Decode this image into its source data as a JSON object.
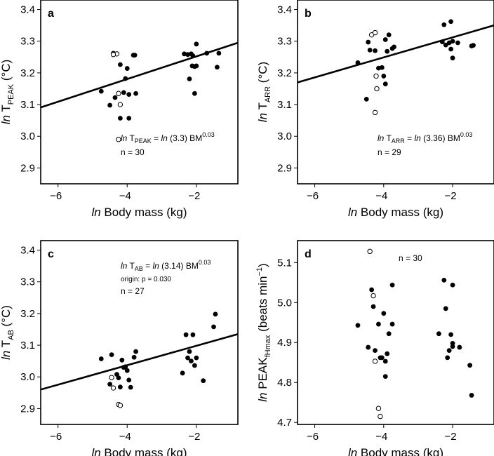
{
  "figure": {
    "label": "Four scatter panels with linear fits",
    "xlabel_prefix": "ln",
    "xlabel_text": "Body mass (kg)"
  },
  "chart_data": [
    {
      "panel_label": "a",
      "type": "scatter",
      "xlabel": "ln Body mass (kg)",
      "ylabel": {
        "prefix": "ln",
        "main": "T",
        "sub": "PEAK",
        "suffix": "(°C)"
      },
      "xlim": [
        -6.5,
        -0.8
      ],
      "ylim": [
        2.85,
        3.43
      ],
      "xticks": [
        -6,
        -4,
        -2
      ],
      "yticks": [
        "2.9",
        "3.0",
        "3.1",
        "3.2",
        "3.3",
        "3.4"
      ],
      "fit": {
        "x": [
          -6.5,
          -0.8
        ],
        "y": [
          3.091,
          3.295
        ]
      },
      "annotation": [
        {
          "pre": "ln",
          "main": "T",
          "sub": "PEAK",
          "post": " = ",
          "pre2": "ln",
          "rest": " (3.3) BM",
          "sup": "0.03"
        },
        {
          "text": "n = 30"
        }
      ],
      "points_filled": [
        [
          -4.75,
          3.142
        ],
        [
          -4.5,
          3.098
        ],
        [
          -4.4,
          3.262
        ],
        [
          -4.35,
          3.122
        ],
        [
          -4.2,
          3.226
        ],
        [
          -4.2,
          3.057
        ],
        [
          -4.1,
          3.138
        ],
        [
          -4.05,
          3.182
        ],
        [
          -4.0,
          3.214
        ],
        [
          -3.95,
          3.132
        ],
        [
          -3.95,
          3.057
        ],
        [
          -3.82,
          3.256
        ],
        [
          -3.78,
          3.256
        ],
        [
          -3.75,
          3.135
        ],
        [
          -2.35,
          3.26
        ],
        [
          -2.25,
          3.258
        ],
        [
          -2.2,
          3.181
        ],
        [
          -2.15,
          3.26
        ],
        [
          -2.12,
          3.222
        ],
        [
          -2.1,
          3.254
        ],
        [
          -2.05,
          3.22
        ],
        [
          -2.05,
          3.135
        ],
        [
          -2.0,
          3.291
        ],
        [
          -2.0,
          3.222
        ],
        [
          -1.7,
          3.262
        ],
        [
          -1.4,
          3.218
        ],
        [
          -1.35,
          3.262
        ]
      ],
      "points_open": [
        [
          -4.3,
          3.26
        ],
        [
          -4.4,
          3.258
        ],
        [
          -4.25,
          3.135
        ],
        [
          -4.2,
          3.1
        ],
        [
          -4.25,
          2.99
        ]
      ]
    },
    {
      "panel_label": "b",
      "type": "scatter",
      "xlabel": "ln Body mass (kg)",
      "ylabel": {
        "prefix": "ln",
        "main": "T",
        "sub": "ARR",
        "suffix": "(°C)"
      },
      "xlim": [
        -6.5,
        -0.8
      ],
      "ylim": [
        2.85,
        3.43
      ],
      "xticks": [
        -6,
        -4,
        -2
      ],
      "yticks": [
        "2.9",
        "3.0",
        "3.1",
        "3.2",
        "3.3",
        "3.4"
      ],
      "fit": {
        "x": [
          -6.5,
          -0.8
        ],
        "y": [
          3.17,
          3.35
        ]
      },
      "annotation": [
        {
          "pre": "ln",
          "main": "T",
          "sub": "ARR",
          "post": " = ",
          "pre2": "ln",
          "rest": " (3.36) BM",
          "sup": "0.03"
        },
        {
          "text": "n = 29"
        }
      ],
      "points_filled": [
        [
          -4.75,
          3.232
        ],
        [
          -4.5,
          3.117
        ],
        [
          -4.45,
          3.297
        ],
        [
          -4.4,
          3.272
        ],
        [
          -4.25,
          3.27
        ],
        [
          -4.15,
          3.215
        ],
        [
          -4.05,
          3.217
        ],
        [
          -4.0,
          3.19
        ],
        [
          -3.95,
          3.305
        ],
        [
          -3.95,
          3.165
        ],
        [
          -3.9,
          3.268
        ],
        [
          -3.85,
          3.32
        ],
        [
          -3.75,
          3.277
        ],
        [
          -3.7,
          3.282
        ],
        [
          -2.3,
          3.298
        ],
        [
          -2.25,
          3.352
        ],
        [
          -2.2,
          3.288
        ],
        [
          -2.1,
          3.295
        ],
        [
          -2.05,
          3.362
        ],
        [
          -2.05,
          3.275
        ],
        [
          -2.0,
          3.247
        ],
        [
          -2.0,
          3.3
        ],
        [
          -1.85,
          3.295
        ],
        [
          -1.45,
          3.285
        ],
        [
          -1.4,
          3.287
        ]
      ],
      "points_open": [
        [
          -4.35,
          3.32
        ],
        [
          -4.25,
          3.327
        ],
        [
          -4.22,
          3.19
        ],
        [
          -4.2,
          3.15
        ],
        [
          -4.25,
          3.075
        ]
      ]
    },
    {
      "panel_label": "c",
      "type": "scatter",
      "xlabel": "ln Body mass (kg)",
      "ylabel": {
        "prefix": "ln",
        "main": "T",
        "sub": "AB",
        "suffix": "(°C)"
      },
      "xlim": [
        -6.5,
        -0.8
      ],
      "ylim": [
        2.85,
        3.43
      ],
      "xticks": [
        -6,
        -4,
        -2
      ],
      "yticks": [
        "2.9",
        "3.0",
        "3.1",
        "3.2",
        "3.3",
        "3.4"
      ],
      "fit": {
        "x": [
          -6.5,
          -0.8
        ],
        "y": [
          2.96,
          3.135
        ]
      },
      "annotation": [
        {
          "pre": "ln",
          "main": "T",
          "sub": "AB",
          "post": " = ",
          "pre2": "ln",
          "rest": " (3.14) BM",
          "sup": "0.03"
        },
        {
          "text": "origin: p = 0.030",
          "small": true
        },
        {
          "text": "n = 27"
        }
      ],
      "points_filled": [
        [
          -4.75,
          3.057
        ],
        [
          -4.5,
          2.977
        ],
        [
          -4.45,
          3.07
        ],
        [
          -4.3,
          3.008
        ],
        [
          -4.25,
          2.997
        ],
        [
          -4.2,
          2.968
        ],
        [
          -4.15,
          3.053
        ],
        [
          -4.1,
          3.03
        ],
        [
          -4.05,
          3.032
        ],
        [
          -4.0,
          3.02
        ],
        [
          -3.95,
          2.99
        ],
        [
          -3.9,
          2.967
        ],
        [
          -3.8,
          3.062
        ],
        [
          -3.75,
          3.08
        ],
        [
          -2.4,
          3.012
        ],
        [
          -2.3,
          3.133
        ],
        [
          -2.25,
          3.06
        ],
        [
          -2.2,
          3.08
        ],
        [
          -2.15,
          3.05
        ],
        [
          -2.1,
          3.133
        ],
        [
          -2.05,
          3.036
        ],
        [
          -2.0,
          3.06
        ],
        [
          -1.8,
          2.988
        ],
        [
          -1.5,
          3.158
        ],
        [
          -1.45,
          3.198
        ]
      ],
      "points_open": [
        [
          -4.45,
          2.998
        ],
        [
          -4.4,
          2.965
        ],
        [
          -4.25,
          2.913
        ],
        [
          -4.2,
          2.91
        ]
      ]
    },
    {
      "panel_label": "d",
      "type": "scatter",
      "xlabel": "ln Body mass (kg)",
      "ylabel": {
        "prefix": "ln",
        "main": "PEAK",
        "sub": "fHmax",
        "suffix": "(beats min",
        "sup": "−1",
        "close": ")"
      },
      "xlim": [
        -6.5,
        -0.8
      ],
      "ylim": [
        4.695,
        5.155
      ],
      "xticks": [
        -6,
        -4,
        -2
      ],
      "yticks": [
        "4.7",
        "4.8",
        "4.9",
        "5.0",
        "5.1"
      ],
      "fit": null,
      "annotation": [
        {
          "text": "n = 30"
        }
      ],
      "points_filled": [
        [
          -4.75,
          4.943
        ],
        [
          -4.45,
          4.888
        ],
        [
          -4.35,
          5.032
        ],
        [
          -4.3,
          4.99
        ],
        [
          -4.25,
          4.88
        ],
        [
          -4.15,
          4.946
        ],
        [
          -4.1,
          4.862
        ],
        [
          -4.05,
          4.862
        ],
        [
          -4.0,
          4.973
        ],
        [
          -3.95,
          4.815
        ],
        [
          -3.95,
          4.853
        ],
        [
          -3.9,
          4.872
        ],
        [
          -3.85,
          4.922
        ],
        [
          -3.75,
          5.044
        ],
        [
          -3.75,
          4.946
        ],
        [
          -2.4,
          4.922
        ],
        [
          -2.25,
          5.056
        ],
        [
          -2.2,
          4.985
        ],
        [
          -2.15,
          4.862
        ],
        [
          -2.1,
          4.88
        ],
        [
          -2.05,
          4.92
        ],
        [
          -2.0,
          5.044
        ],
        [
          -2.0,
          4.898
        ],
        [
          -2.0,
          4.89
        ],
        [
          -1.8,
          4.888
        ],
        [
          -1.5,
          4.843
        ],
        [
          -1.45,
          4.768
        ]
      ],
      "points_open": [
        [
          -4.4,
          5.128
        ],
        [
          -4.3,
          5.017
        ],
        [
          -4.25,
          4.853
        ],
        [
          -4.15,
          4.735
        ],
        [
          -4.1,
          4.715
        ]
      ]
    }
  ]
}
